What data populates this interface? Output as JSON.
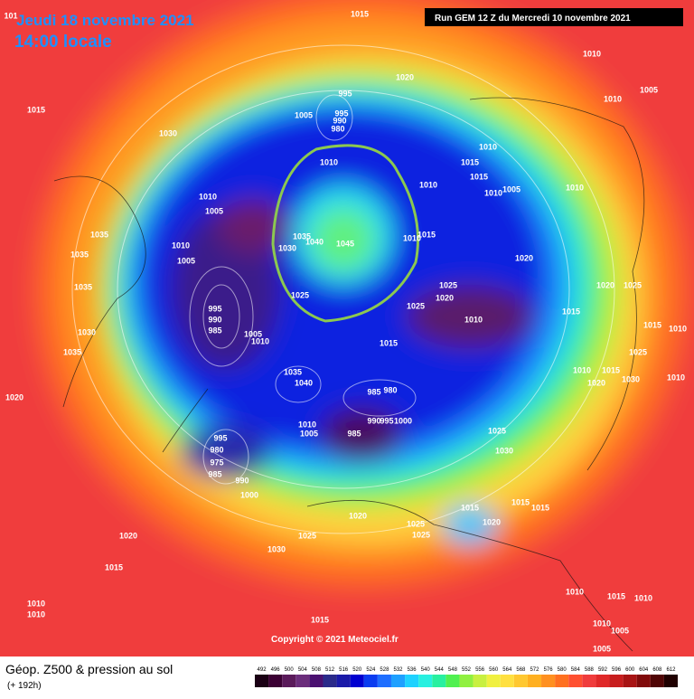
{
  "header": {
    "date": "Jeudi 18 novembre 2021",
    "time": "14:00 locale",
    "run": "Run GEM 12 Z du Mercredi 10 novembre 2021"
  },
  "copyright": "Copyright © 2021 Meteociel.fr",
  "legend": {
    "title": "Géop. Z500 & pression au sol",
    "lead": "(+ 192h)",
    "scale": [
      492,
      496,
      500,
      504,
      508,
      512,
      516,
      520,
      524,
      528,
      532,
      536,
      540,
      544,
      548,
      552,
      556,
      560,
      564,
      568,
      572,
      576,
      580,
      584,
      588,
      592,
      596,
      600,
      604,
      608,
      612
    ]
  },
  "isobars": [
    "101",
    "1015",
    "1010",
    "1020",
    "1005",
    "1010",
    "1015",
    "1030",
    "995",
    "1005",
    "995",
    "990",
    "980",
    "1010",
    "1010",
    "1015",
    "1015",
    "1010",
    "1010",
    "1005",
    "1010",
    "1010",
    "1005",
    "1035",
    "1010",
    "1035",
    "1005",
    "1030",
    "1040",
    "1045",
    "1035",
    "1015",
    "1010",
    "1020",
    "1025",
    "1025",
    "1020",
    "1020",
    "1025",
    "1025",
    "1010",
    "1015",
    "1015",
    "1010",
    "995",
    "990",
    "985",
    "1005",
    "1010",
    "1015",
    "1025",
    "1030",
    "1035",
    "1035",
    "1010",
    "1015",
    "1020",
    "1030",
    "1010",
    "1020",
    "1035",
    "1040",
    "985",
    "980",
    "990",
    "995",
    "1000",
    "1010",
    "1005",
    "985",
    "995",
    "980",
    "975",
    "985",
    "990",
    "1025",
    "1030",
    "1000",
    "1015",
    "1015",
    "1020",
    "1015",
    "1020",
    "1025",
    "1025",
    "1020",
    "1025",
    "1030",
    "1015",
    "1010",
    "1015",
    "1010",
    "1010",
    "1010",
    "1015",
    "1010",
    "1005",
    "1005"
  ]
}
